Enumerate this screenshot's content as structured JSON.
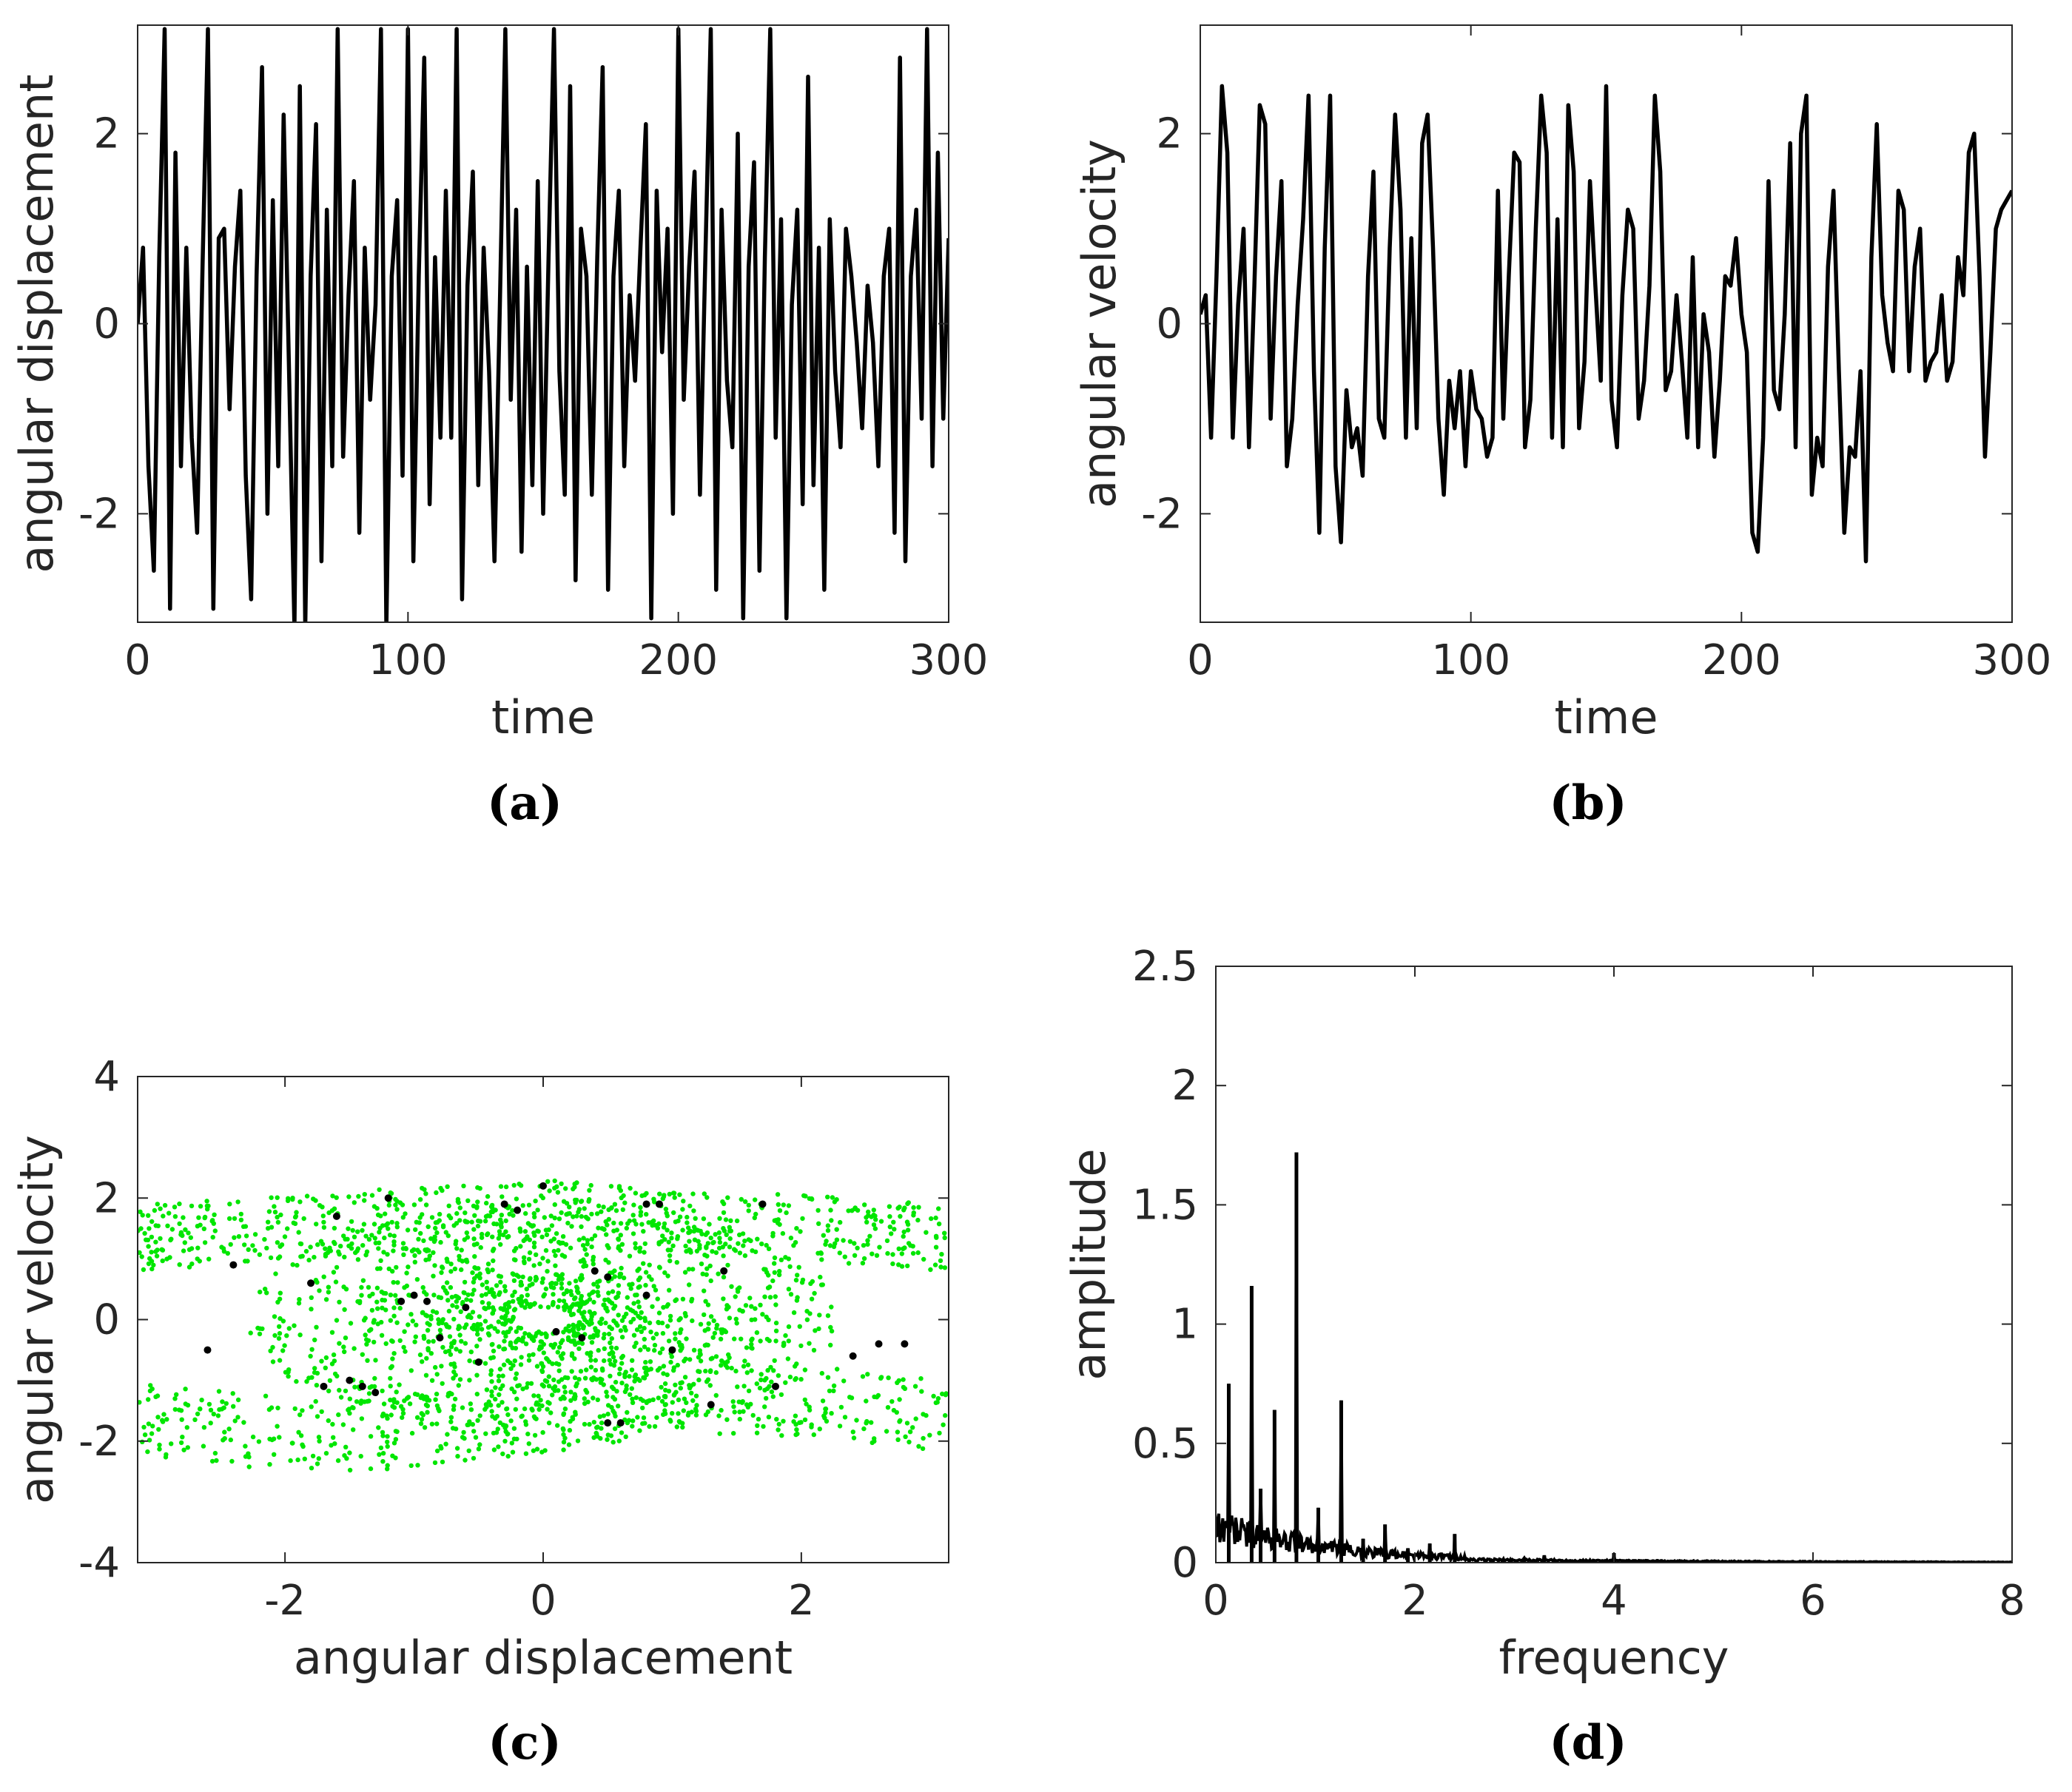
{
  "chart_data": [
    {
      "id": "a",
      "type": "line",
      "caption": "(a)",
      "xlabel": "time",
      "ylabel": "angular displacement",
      "xlim": [
        0,
        300
      ],
      "ylim": [
        -3.1416,
        3.1416
      ],
      "xticks": [
        0,
        100,
        200,
        300
      ],
      "yticks": [
        -2,
        0,
        2
      ],
      "xtick_labels": [
        "0",
        "100",
        "200",
        "300"
      ],
      "ytick_labels": [
        "-2",
        "0",
        "2"
      ],
      "line_color": "#000000",
      "x": [
        0,
        2,
        4,
        6,
        8,
        10,
        12,
        14,
        16,
        18,
        20,
        22,
        24,
        26,
        28,
        30,
        32,
        34,
        36,
        38,
        40,
        42,
        44,
        46,
        48,
        50,
        52,
        54,
        56,
        58,
        60,
        62,
        64,
        66,
        68,
        70,
        72,
        74,
        76,
        78,
        80,
        82,
        84,
        86,
        88,
        90,
        92,
        94,
        96,
        98,
        100,
        102,
        104,
        106,
        108,
        110,
        112,
        114,
        116,
        118,
        120,
        122,
        124,
        126,
        128,
        130,
        132,
        134,
        136,
        138,
        140,
        142,
        144,
        146,
        148,
        150,
        152,
        154,
        156,
        158,
        160,
        162,
        164,
        166,
        168,
        170,
        172,
        174,
        176,
        178,
        180,
        182,
        184,
        186,
        188,
        190,
        192,
        194,
        196,
        198,
        200,
        202,
        204,
        206,
        208,
        210,
        212,
        214,
        216,
        218,
        220,
        222,
        224,
        226,
        228,
        230,
        232,
        234,
        236,
        238,
        240,
        242,
        244,
        246,
        248,
        250,
        252,
        254,
        256,
        258,
        260,
        262,
        264,
        266,
        268,
        270,
        272,
        274,
        276,
        278,
        280,
        282,
        284,
        286,
        288,
        290,
        292,
        294,
        296,
        298,
        300
      ],
      "y": [
        0,
        0.8,
        -1.5,
        -2.6,
        0.7,
        3.1,
        -3.0,
        1.8,
        -1.5,
        0.8,
        -1.2,
        -2.2,
        0.6,
        3.1,
        -3.0,
        0.9,
        1.0,
        -0.9,
        0.6,
        1.4,
        -1.6,
        -2.9,
        0.5,
        2.7,
        -2.0,
        1.3,
        -1.5,
        2.2,
        -0.5,
        -3.2,
        2.5,
        -3.2,
        0.5,
        2.1,
        -2.5,
        1.2,
        -1.5,
        3.1,
        -1.4,
        0.3,
        1.5,
        -2.2,
        0.8,
        -0.8,
        0.2,
        3.1,
        -3.2,
        0.5,
        1.3,
        -1.6,
        3.1,
        -2.5,
        0.5,
        2.8,
        -1.9,
        0.7,
        -1.2,
        1.4,
        -1.2,
        3.1,
        -2.9,
        0.4,
        1.6,
        -1.7,
        0.8,
        -0.5,
        -2.5,
        0.2,
        3.1,
        -0.8,
        1.2,
        -2.4,
        0.6,
        -1.7,
        1.5,
        -2.0,
        0.7,
        3.1,
        -0.5,
        -1.8,
        2.5,
        -2.7,
        1.0,
        0.5,
        -1.8,
        0.7,
        2.7,
        -2.8,
        0.5,
        1.4,
        -1.5,
        0.3,
        -0.6,
        0.8,
        2.1,
        -3.1,
        1.4,
        -0.3,
        1.0,
        -2.0,
        3.1,
        -0.8,
        0.6,
        1.6,
        -1.8,
        0.7,
        3.1,
        -2.8,
        1.2,
        -0.6,
        -1.3,
        2.0,
        -3.1,
        0.6,
        1.7,
        -2.6,
        0.7,
        3.1,
        -1.2,
        1.1,
        -3.1,
        0.2,
        1.2,
        -1.9,
        2.6,
        -1.7,
        0.8,
        -2.8,
        1.1,
        -0.5,
        -1.3,
        1.0,
        0.5,
        -0.2,
        -1.1,
        0.4,
        -0.2,
        -1.5,
        0.5,
        1.0,
        -2.2,
        2.8,
        -2.5,
        0.5,
        1.2,
        -1.0,
        3.1,
        -1.5,
        1.8,
        -1.0,
        0.9
      ]
    },
    {
      "id": "b",
      "type": "line",
      "caption": "(b)",
      "xlabel": "time",
      "ylabel": "angular velocity",
      "xlim": [
        0,
        300
      ],
      "ylim": [
        -3.1416,
        3.1416
      ],
      "xticks": [
        0,
        100,
        200,
        300
      ],
      "yticks": [
        -2,
        0,
        2
      ],
      "xtick_labels": [
        "0",
        "100",
        "200",
        "300"
      ],
      "ytick_labels": [
        "-2",
        "0",
        "2"
      ],
      "line_color": "#000000",
      "x": [
        0,
        2,
        4,
        6,
        8,
        10,
        12,
        14,
        16,
        18,
        20,
        22,
        24,
        26,
        28,
        30,
        32,
        34,
        36,
        38,
        40,
        42,
        44,
        46,
        48,
        50,
        52,
        54,
        56,
        58,
        60,
        62,
        64,
        66,
        68,
        70,
        72,
        74,
        76,
        78,
        80,
        82,
        84,
        86,
        88,
        90,
        92,
        94,
        96,
        98,
        100,
        102,
        104,
        106,
        108,
        110,
        112,
        114,
        116,
        118,
        120,
        122,
        124,
        126,
        128,
        130,
        132,
        134,
        136,
        138,
        140,
        142,
        144,
        146,
        148,
        150,
        152,
        154,
        156,
        158,
        160,
        162,
        164,
        166,
        168,
        170,
        172,
        174,
        176,
        178,
        180,
        182,
        184,
        186,
        188,
        190,
        192,
        194,
        196,
        198,
        200,
        202,
        204,
        206,
        208,
        210,
        212,
        214,
        216,
        218,
        220,
        222,
        224,
        226,
        228,
        230,
        232,
        234,
        236,
        238,
        240,
        242,
        244,
        246,
        248,
        250,
        252,
        254,
        256,
        258,
        260,
        262,
        264,
        266,
        268,
        270,
        272,
        274,
        276,
        278,
        280,
        282,
        284,
        286,
        288,
        290,
        292,
        294,
        296,
        298,
        300
      ],
      "y": [
        0.1,
        0.3,
        -1.2,
        0.5,
        2.5,
        1.8,
        -1.2,
        0.2,
        1.0,
        -1.3,
        0.4,
        2.3,
        2.1,
        -1.0,
        0.5,
        1.5,
        -1.5,
        -1.0,
        0.2,
        1.1,
        2.4,
        -0.5,
        -2.2,
        0.8,
        2.4,
        -1.5,
        -2.3,
        -0.7,
        -1.3,
        -1.1,
        -1.6,
        0.5,
        1.6,
        -1.0,
        -1.2,
        0.8,
        2.2,
        1.2,
        -1.2,
        0.9,
        -1.1,
        1.9,
        2.2,
        0.8,
        -1.0,
        -1.8,
        -0.6,
        -1.1,
        -0.5,
        -1.5,
        -0.5,
        -0.9,
        -1.0,
        -1.4,
        -1.2,
        1.4,
        -1.0,
        0.5,
        1.8,
        1.7,
        -1.3,
        -0.8,
        1.0,
        2.4,
        1.8,
        -1.2,
        1.1,
        -1.3,
        2.3,
        1.6,
        -1.1,
        -0.4,
        1.5,
        0.4,
        -0.6,
        2.5,
        -0.8,
        -1.3,
        0.3,
        1.2,
        1.0,
        -1.0,
        -0.6,
        0.4,
        2.4,
        1.6,
        -0.7,
        -0.5,
        0.3,
        -0.4,
        -1.2,
        0.7,
        -1.3,
        0.1,
        -0.3,
        -1.4,
        -0.6,
        0.5,
        0.4,
        0.9,
        0.1,
        -0.3,
        -2.2,
        -2.4,
        -1.2,
        1.5,
        -0.7,
        -0.9,
        0.1,
        1.9,
        -1.3,
        2.0,
        2.4,
        -1.8,
        -1.2,
        -1.5,
        0.6,
        1.4,
        -0.5,
        -2.2,
        -1.3,
        -1.4,
        -0.5,
        -2.5,
        0.7,
        2.1,
        0.3,
        -0.2,
        -0.5,
        1.4,
        1.2,
        -0.5,
        0.6,
        1.0,
        -0.6,
        -0.4,
        -0.3,
        0.3,
        -0.6,
        -0.4,
        0.7,
        0.3,
        1.8,
        2.0,
        0.5,
        -1.4,
        -0.3,
        1.0,
        1.2,
        1.3,
        1.4
      ]
    },
    {
      "id": "c",
      "type": "scatter",
      "caption": "(c)",
      "xlabel": "angular displacement",
      "ylabel": "angular velocity",
      "xlim": [
        -3.1416,
        3.1416
      ],
      "ylim": [
        -4,
        4
      ],
      "xticks": [
        -2,
        0,
        2
      ],
      "yticks": [
        -4,
        -2,
        0,
        2,
        4
      ],
      "xtick_labels": [
        "-2",
        "0",
        "2"
      ],
      "ytick_labels": [
        "-4",
        "-2",
        "0",
        "2",
        "4"
      ],
      "trajectory_color": "#00e600",
      "poincare_color": "#000000",
      "green_point_count": 2600,
      "black_points": [
        {
          "x": -2.6,
          "y": -0.5
        },
        {
          "x": -2.4,
          "y": 0.9
        },
        {
          "x": -1.8,
          "y": 0.6
        },
        {
          "x": -1.7,
          "y": -1.1
        },
        {
          "x": -1.6,
          "y": 1.7
        },
        {
          "x": -1.5,
          "y": -1.0
        },
        {
          "x": -1.4,
          "y": -1.1
        },
        {
          "x": -1.3,
          "y": -1.2
        },
        {
          "x": -1.2,
          "y": 2.0
        },
        {
          "x": -1.1,
          "y": 0.3
        },
        {
          "x": -1.0,
          "y": 0.4
        },
        {
          "x": -0.9,
          "y": 0.3
        },
        {
          "x": -0.8,
          "y": -0.3
        },
        {
          "x": -0.6,
          "y": 0.2
        },
        {
          "x": -0.5,
          "y": -0.7
        },
        {
          "x": -0.3,
          "y": 1.9
        },
        {
          "x": -0.2,
          "y": 1.8
        },
        {
          "x": 0.0,
          "y": 2.2
        },
        {
          "x": 0.1,
          "y": -0.2
        },
        {
          "x": 0.3,
          "y": -0.3
        },
        {
          "x": 0.4,
          "y": 0.8
        },
        {
          "x": 0.5,
          "y": 0.7
        },
        {
          "x": 0.5,
          "y": -1.7
        },
        {
          "x": 0.6,
          "y": -1.7
        },
        {
          "x": 0.8,
          "y": 1.9
        },
        {
          "x": 0.9,
          "y": 1.9
        },
        {
          "x": 0.8,
          "y": 0.4
        },
        {
          "x": 1.0,
          "y": -0.5
        },
        {
          "x": 1.3,
          "y": -1.4
        },
        {
          "x": 1.4,
          "y": 0.8
        },
        {
          "x": 1.7,
          "y": 1.9
        },
        {
          "x": 1.8,
          "y": -1.1
        },
        {
          "x": 2.4,
          "y": -0.6
        },
        {
          "x": 2.6,
          "y": -0.4
        },
        {
          "x": 2.8,
          "y": -0.4
        }
      ]
    },
    {
      "id": "d",
      "type": "line",
      "caption": "(d)",
      "xlabel": "frequency",
      "ylabel": "amplitude",
      "xlim": [
        0,
        8
      ],
      "ylim": [
        0,
        2.5
      ],
      "xticks": [
        0,
        2,
        4,
        6,
        8
      ],
      "yticks": [
        0,
        0.5,
        1,
        1.5,
        2,
        2.5
      ],
      "xtick_labels": [
        "0",
        "2",
        "4",
        "6",
        "8"
      ],
      "ytick_labels": [
        "0",
        "0.5",
        "1",
        "1.5",
        "2",
        "2.5"
      ],
      "line_color": "#000000",
      "peaks": [
        {
          "x": 0.13,
          "y": 0.75
        },
        {
          "x": 0.36,
          "y": 1.16
        },
        {
          "x": 0.45,
          "y": 0.31
        },
        {
          "x": 0.59,
          "y": 0.64
        },
        {
          "x": 0.81,
          "y": 1.72
        },
        {
          "x": 1.03,
          "y": 0.23
        },
        {
          "x": 1.26,
          "y": 0.68
        },
        {
          "x": 1.48,
          "y": 0.1
        },
        {
          "x": 1.7,
          "y": 0.16
        },
        {
          "x": 1.93,
          "y": 0.06
        },
        {
          "x": 2.15,
          "y": 0.08
        },
        {
          "x": 2.4,
          "y": 0.12
        },
        {
          "x": 3.1,
          "y": 0.02
        },
        {
          "x": 3.3,
          "y": 0.03
        },
        {
          "x": 4.0,
          "y": 0.04
        }
      ]
    }
  ]
}
